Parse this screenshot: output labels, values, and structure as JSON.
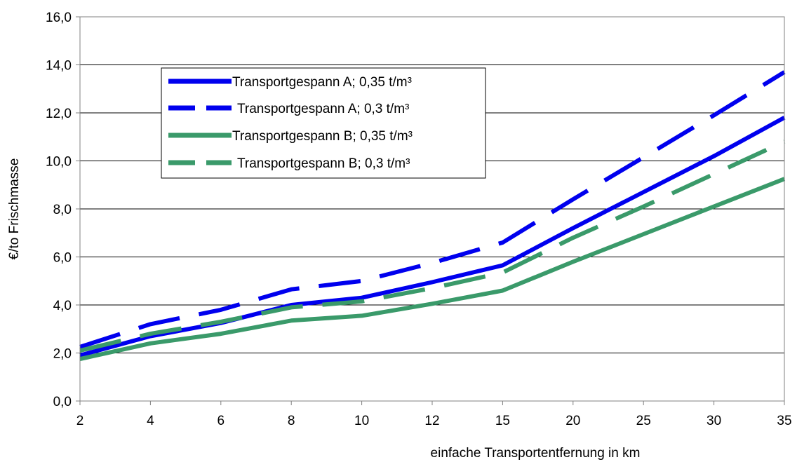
{
  "chart_data": {
    "type": "line",
    "title": "",
    "xlabel": "einfache Transportentfernung in km",
    "ylabel": "€/to Frischmasse",
    "categories": [
      "2",
      "4",
      "6",
      "8",
      "10",
      "12",
      "15",
      "20",
      "25",
      "30",
      "35"
    ],
    "ylim": [
      0,
      16
    ],
    "yticks": [
      "0,0",
      "2,0",
      "4,0",
      "6,0",
      "8,0",
      "10,0",
      "12,0",
      "14,0",
      "16,0"
    ],
    "grid": true,
    "legend_position": "top-left",
    "series": [
      {
        "name": "Transportgespann A; 0,35 t/m³",
        "color": "#0000ee",
        "dash": "solid",
        "values": [
          1.9,
          2.7,
          3.25,
          4.0,
          4.3,
          4.95,
          5.65,
          7.2,
          8.7,
          10.2,
          11.8
        ]
      },
      {
        "name": "Transportgespann A; 0,3 t/m³",
        "color": "#0000ee",
        "dash": "dashed",
        "values": [
          2.25,
          3.2,
          3.8,
          4.65,
          5.0,
          5.75,
          6.6,
          8.4,
          10.15,
          11.9,
          13.7
        ]
      },
      {
        "name": "Transportgespann B; 0,35 t/m³",
        "color": "#3a9a6a",
        "dash": "solid",
        "values": [
          1.75,
          2.4,
          2.8,
          3.35,
          3.55,
          4.05,
          4.6,
          5.8,
          6.95,
          8.1,
          9.25
        ]
      },
      {
        "name": "Transportgespann B; 0,3 t/m³",
        "color": "#3a9a6a",
        "dash": "dashed",
        "values": [
          2.1,
          2.8,
          3.3,
          3.9,
          4.15,
          4.7,
          5.35,
          6.8,
          8.1,
          9.45,
          10.8
        ]
      }
    ]
  }
}
